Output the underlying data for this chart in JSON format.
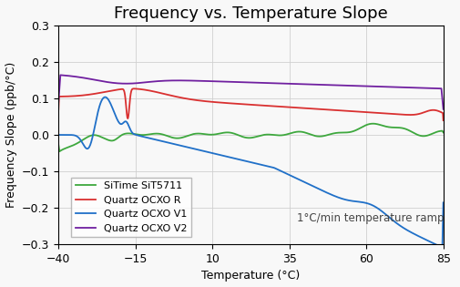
{
  "title": "Frequency vs. Temperature Slope",
  "xlabel": "Temperature (°C)",
  "ylabel": "Frequency Slope (ppb/°C)",
  "xlim": [
    -40,
    85
  ],
  "ylim": [
    -0.3,
    0.3
  ],
  "xticks": [
    -40,
    -15,
    10,
    35,
    60,
    85
  ],
  "yticks": [
    -0.3,
    -0.2,
    -0.1,
    0.0,
    0.1,
    0.2,
    0.3
  ],
  "annotation": "1°C/min temperature ramp",
  "legend_labels": [
    "SiTime SiT5711",
    "Quartz OCXO R",
    "Quartz OCXO V1",
    "Quartz OCXO V2"
  ],
  "colors": {
    "green": "#3ea83e",
    "red": "#d93030",
    "blue": "#2070c8",
    "purple": "#7020a0"
  },
  "background_color": "#f8f8f8",
  "grid_color": "#d0d0d0",
  "title_fontsize": 13,
  "axis_fontsize": 9,
  "tick_fontsize": 9,
  "legend_fontsize": 8,
  "annotation_fontsize": 8.5,
  "linewidth": 1.3
}
